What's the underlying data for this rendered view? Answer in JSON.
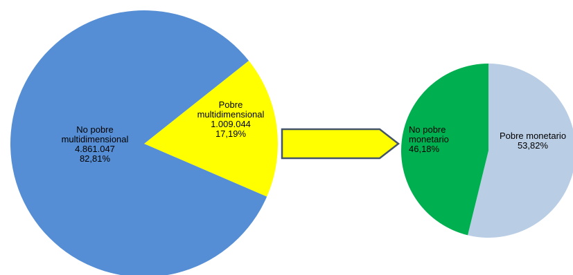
{
  "chart_data": [
    {
      "type": "pie",
      "slices": [
        {
          "name": "No pobre multidimensional",
          "value": 4861047,
          "value_label": "4.861.047",
          "percent_label": "82,81%",
          "color": "#558ED5"
        },
        {
          "name": "Pobre multidimensional",
          "value": 1009044,
          "value_label": "1.009.044",
          "percent_label": "17,19%",
          "color": "#FFFF00"
        }
      ]
    },
    {
      "type": "pie",
      "slices": [
        {
          "name": "No pobre monetario",
          "value": 46.18,
          "percent_label": "46,18%",
          "color": "#00B050"
        },
        {
          "name": "Pobre monetario",
          "value": 53.82,
          "percent_label": "53,82%",
          "color": "#B9CDE5"
        }
      ]
    }
  ],
  "labels": {
    "big_no_pobre": {
      "line1": "No pobre",
      "line2": "multidimensional",
      "value": "4.861.047",
      "percent": "82,81%"
    },
    "big_pobre": {
      "line1": "Pobre",
      "line2": "multidimensional",
      "value": "1.009.044",
      "percent": "17,19%"
    },
    "small_no_pobre": {
      "line1": "No pobre",
      "line2": "monetario",
      "percent": "46,18%"
    },
    "small_pobre": {
      "line1": "Pobre monetario",
      "percent": "53,82%"
    }
  },
  "arrow": {
    "fill": "#FFFF00",
    "stroke": "#44546A"
  }
}
